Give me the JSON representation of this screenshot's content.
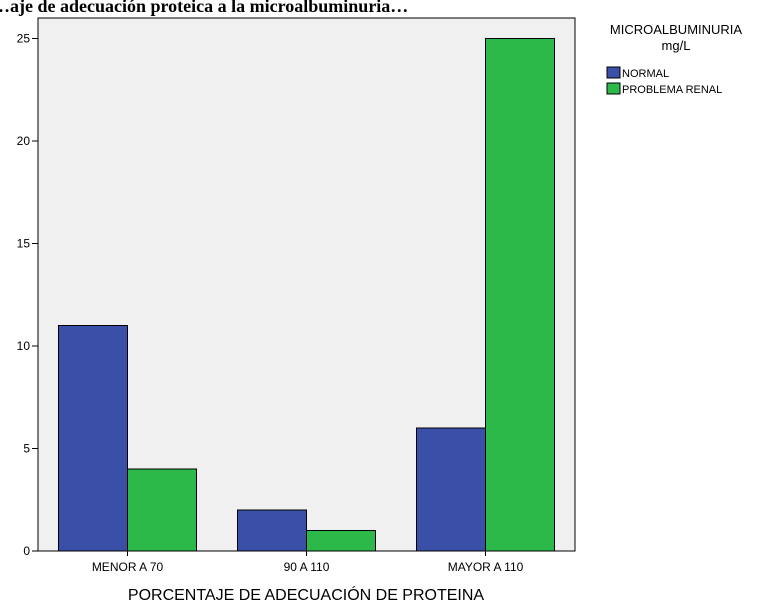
{
  "chart_data": {
    "type": "bar",
    "title": "…aje de adecuación proteica a la microalbuminuria…",
    "xlabel": "PORCENTAJE DE ADECUACIÓN DE PROTEINA",
    "ylabel": "",
    "categories": [
      "MENOR A 70",
      "90 A 110",
      "MAYOR A 110"
    ],
    "series": [
      {
        "name": "NORMAL",
        "values": [
          11,
          2,
          6
        ],
        "color": "#3a4fa8"
      },
      {
        "name": "PROBLEMA RENAL",
        "values": [
          4,
          1,
          25
        ],
        "color": "#2db84a"
      }
    ],
    "ylim": [
      0,
      26
    ],
    "yticks": [
      0,
      5,
      10,
      15,
      20,
      25
    ],
    "legend": {
      "title_line1": "MICROALBUMINURIA",
      "title_line2": "mg/L",
      "placement": "top-right"
    },
    "grid": false,
    "plot_background": "#f0f0f0"
  }
}
